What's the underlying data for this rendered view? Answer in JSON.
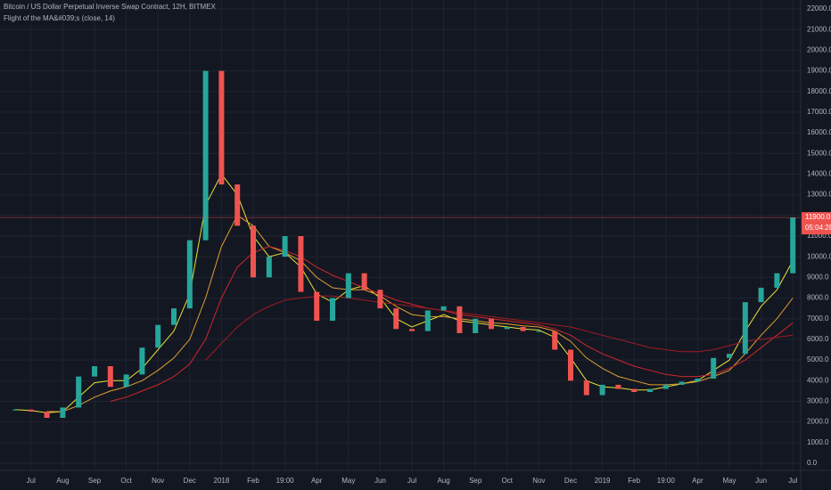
{
  "chart_data": {
    "type": "candlestick",
    "title": "Bitcoin / US Dollar Perpetual Inverse Swap Contract, 12H, BITMEX",
    "indicator": "Flight of the MA&#039;s (close, 14)",
    "categories": [
      null,
      "Jul",
      null,
      "Aug",
      null,
      "Sep",
      null,
      "Oct",
      null,
      "Nov",
      null,
      "Dec",
      null,
      "2018",
      null,
      "Feb",
      null,
      "19:00",
      null,
      "Apr",
      null,
      "May",
      null,
      "Jun",
      null,
      "Jul",
      null,
      "Aug",
      null,
      "Sep",
      null,
      "Oct",
      null,
      "Nov",
      null,
      "Dec",
      null,
      "2019",
      null,
      "Feb",
      null,
      "19:00",
      null,
      "Apr",
      null,
      "May",
      null,
      "Jun",
      null,
      "Jul"
    ],
    "values": [
      2600,
      2500,
      2200,
      2700,
      4200,
      4700,
      3700,
      4300,
      5600,
      6700,
      7500,
      10800,
      19000,
      13500,
      11500,
      9000,
      10000,
      11000,
      8300,
      6900,
      8000,
      9200,
      8400,
      7500,
      6500,
      6400,
      7400,
      7600,
      6300,
      7000,
      6500,
      6600,
      6400,
      6400,
      5500,
      4000,
      3300,
      3800,
      3600,
      3450,
      3600,
      3800,
      3950,
      4100,
      5100,
      5300,
      7800,
      8500,
      9200,
      11900
    ],
    "up_color": "#26a69a",
    "down_color": "#ef5350",
    "series": [
      {
        "color": "#e8e337",
        "values": [
          2600,
          2550,
          2450,
          2500,
          3200,
          3900,
          4000,
          4000,
          4600,
          5500,
          6400,
          8200,
          12500,
          14000,
          13000,
          11000,
          10000,
          10200,
          9500,
          8200,
          7800,
          8400,
          8600,
          8000,
          7000,
          6600,
          6900,
          7200,
          6900,
          6800,
          6700,
          6600,
          6500,
          6450,
          6100,
          5100,
          4000,
          3700,
          3650,
          3550,
          3550,
          3700,
          3850,
          4000,
          4500,
          5000,
          6400,
          7600,
          8400,
          9800
        ]
      },
      {
        "color": "#e0a030",
        "values": [
          null,
          null,
          2500,
          2500,
          2800,
          3200,
          3500,
          3700,
          4000,
          4500,
          5100,
          6000,
          8000,
          10500,
          12000,
          11500,
          10500,
          10200,
          9800,
          9000,
          8500,
          8400,
          8400,
          8100,
          7600,
          7200,
          7100,
          7100,
          7000,
          6900,
          6800,
          6750,
          6650,
          6600,
          6400,
          5900,
          5100,
          4600,
          4200,
          4000,
          3800,
          3800,
          3850,
          3950,
          4200,
          4500,
          5300,
          6200,
          7000,
          8000
        ]
      },
      {
        "color": "#d0262c",
        "values": [
          null,
          null,
          null,
          null,
          null,
          null,
          3000,
          3200,
          3500,
          3800,
          4200,
          4800,
          6000,
          8000,
          9500,
          10200,
          10500,
          10300,
          10000,
          9500,
          9100,
          8800,
          8500,
          8200,
          7900,
          7700,
          7500,
          7400,
          7200,
          7100,
          7000,
          6900,
          6800,
          6700,
          6500,
          6200,
          5700,
          5300,
          5000,
          4700,
          4500,
          4300,
          4200,
          4200,
          4300,
          4600,
          5000,
          5600,
          6200,
          6800
        ]
      },
      {
        "color": "#9e1c22",
        "values": [
          null,
          null,
          null,
          null,
          null,
          null,
          null,
          null,
          null,
          null,
          null,
          null,
          5000,
          5800,
          6600,
          7200,
          7600,
          7900,
          8000,
          8100,
          8100,
          8000,
          7900,
          7800,
          7700,
          7600,
          7500,
          7400,
          7300,
          7200,
          7100,
          7000,
          6900,
          6800,
          6700,
          6600,
          6400,
          6200,
          6000,
          5800,
          5600,
          5500,
          5400,
          5400,
          5500,
          5700,
          5900,
          6000,
          6100,
          6200
        ]
      }
    ],
    "last_price": {
      "value": 11900,
      "label": "11900.0"
    },
    "countdown": "05:04:28",
    "ylim": [
      0,
      22000
    ],
    "yticks": [
      {
        "value": 0,
        "label": "0.0"
      },
      {
        "value": 1000,
        "label": "1000.0"
      },
      {
        "value": 2000,
        "label": "2000.0"
      },
      {
        "value": 3000,
        "label": "3000.0"
      },
      {
        "value": 4000,
        "label": "4000.0"
      },
      {
        "value": 5000,
        "label": "5000.0"
      },
      {
        "value": 6000,
        "label": "6000.0"
      },
      {
        "value": 7000,
        "label": "7000.0"
      },
      {
        "value": 8000,
        "label": "8000.0"
      },
      {
        "value": 9000,
        "label": "9000.0"
      },
      {
        "value": 10000,
        "label": "10000.0"
      },
      {
        "value": 11000,
        "label": "11000.0"
      },
      {
        "value": 12000,
        "label": "12000.0"
      },
      {
        "value": 13000,
        "label": "13000.0"
      },
      {
        "value": 14000,
        "label": "14000.0"
      },
      {
        "value": 15000,
        "label": "15000.0"
      },
      {
        "value": 16000,
        "label": "16000.0"
      },
      {
        "value": 17000,
        "label": "17000.0"
      },
      {
        "value": 18000,
        "label": "18000.0"
      },
      {
        "value": 19000,
        "label": "19000.0"
      },
      {
        "value": 20000,
        "label": "20000.0"
      },
      {
        "value": 21000,
        "label": "21000.0"
      },
      {
        "value": 22000,
        "label": "22000.0"
      }
    ],
    "grid": true
  }
}
